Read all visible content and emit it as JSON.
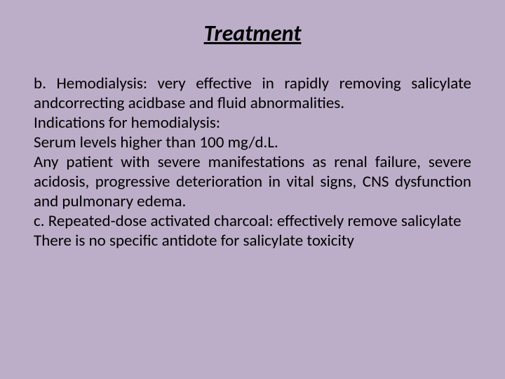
{
  "slide": {
    "background_color": "#bcaec8",
    "title": "Treatment",
    "title_style": {
      "font_size": 32,
      "font_weight": "bold",
      "font_style": "italic",
      "text_decoration": "underline",
      "text_align": "center",
      "color": "#000000"
    },
    "body_style": {
      "font_size": 23,
      "color": "#000000",
      "text_align": "justify",
      "line_height": 1.22
    },
    "paragraphs": {
      "p1": "b. Hemodialysis: very effective in rapidly removing salicylate andcorrecting acidbase and fluid abnormalities.",
      "p2": "Indications for hemodialysis:",
      "p3": "Serum levels higher than 100 mg/d.L.",
      "p4": "Any patient with severe manifestations as renal failure, severe acidosis, progressive deterioration in vital signs, CNS dysfunction and pulmonary edema.",
      "p5": "c. Repeated-dose activated charcoal: effectively remove salicylate",
      "p6": "There is no specific antidote for salicylate toxicity"
    }
  }
}
